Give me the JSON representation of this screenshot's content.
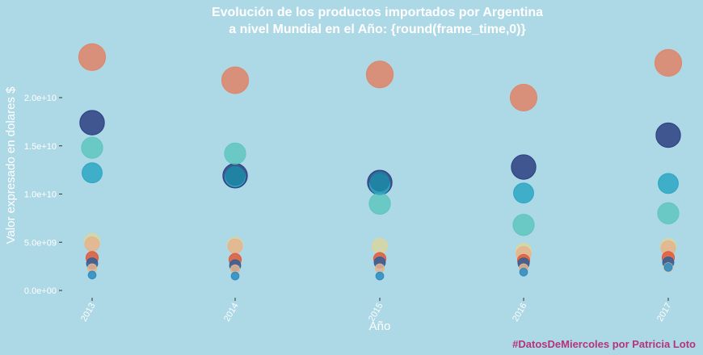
{
  "chart_data": {
    "type": "scatter",
    "title_line1": "Evolución de los productos importados por Argentina",
    "title_line2": "a nivel Mundial en el Año: {round(frame_time,0)}",
    "xlabel": "Año",
    "ylabel": "Valor expresado en dolares $",
    "caption": "#DatosDeMiercoles por Patricia Loto",
    "x_categories": [
      "2013",
      "2014",
      "2015",
      "2016",
      "2017"
    ],
    "yticks": [
      {
        "value": 0,
        "label": "0.0e+00"
      },
      {
        "value": 5000000000,
        "label": "5.0e+09"
      },
      {
        "value": 10000000000,
        "label": "1.0e+10"
      },
      {
        "value": 15000000000,
        "label": "1.5e+10"
      },
      {
        "value": 20000000000,
        "label": "2.0e+10"
      }
    ],
    "ylim": [
      -500000000,
      25000000000
    ],
    "grid": false,
    "legend": "none",
    "background_color": "#add8e6",
    "series": [
      {
        "color": "#e08467",
        "values": [
          24200000000,
          21800000000,
          22400000000,
          20000000000,
          23600000000
        ],
        "size": 24
      },
      {
        "color": "#2b3f80",
        "values": [
          17400000000,
          11900000000,
          11200000000,
          12800000000,
          16100000000
        ],
        "size": 22
      },
      {
        "color": "#5ec6be",
        "values": [
          14800000000,
          14200000000,
          9000000000,
          6800000000,
          8000000000
        ],
        "size": 19
      },
      {
        "color": "#2aa7c3",
        "values": [
          12200000000,
          11800000000,
          11000000000,
          10100000000,
          11100000000
        ],
        "size": 18
      },
      {
        "color": "#1e7fa0",
        "values": [
          null,
          11900000000,
          11300000000,
          null,
          null
        ],
        "size": 17
      },
      {
        "color": "#d8d6a0",
        "values": [
          5100000000,
          4700000000,
          4600000000,
          4100000000,
          4600000000
        ],
        "size": 14
      },
      {
        "color": "#e4b48e",
        "values": [
          4800000000,
          4600000000,
          null,
          3800000000,
          4400000000
        ],
        "size": 13
      },
      {
        "color": "#e05a38",
        "values": [
          3400000000,
          3200000000,
          3300000000,
          3100000000,
          3400000000
        ],
        "size": 11
      },
      {
        "color": "#2f5f98",
        "values": [
          2800000000,
          2600000000,
          2900000000,
          2800000000,
          2900000000
        ],
        "size": 10
      },
      {
        "color": "#e4b48e",
        "values": [
          2300000000,
          2200000000,
          2300000000,
          2300000000,
          2400000000
        ],
        "size": 8
      },
      {
        "color": "#2a8cbf",
        "values": [
          1600000000,
          1500000000,
          1500000000,
          1900000000,
          2400000000
        ],
        "size": 7
      }
    ]
  }
}
